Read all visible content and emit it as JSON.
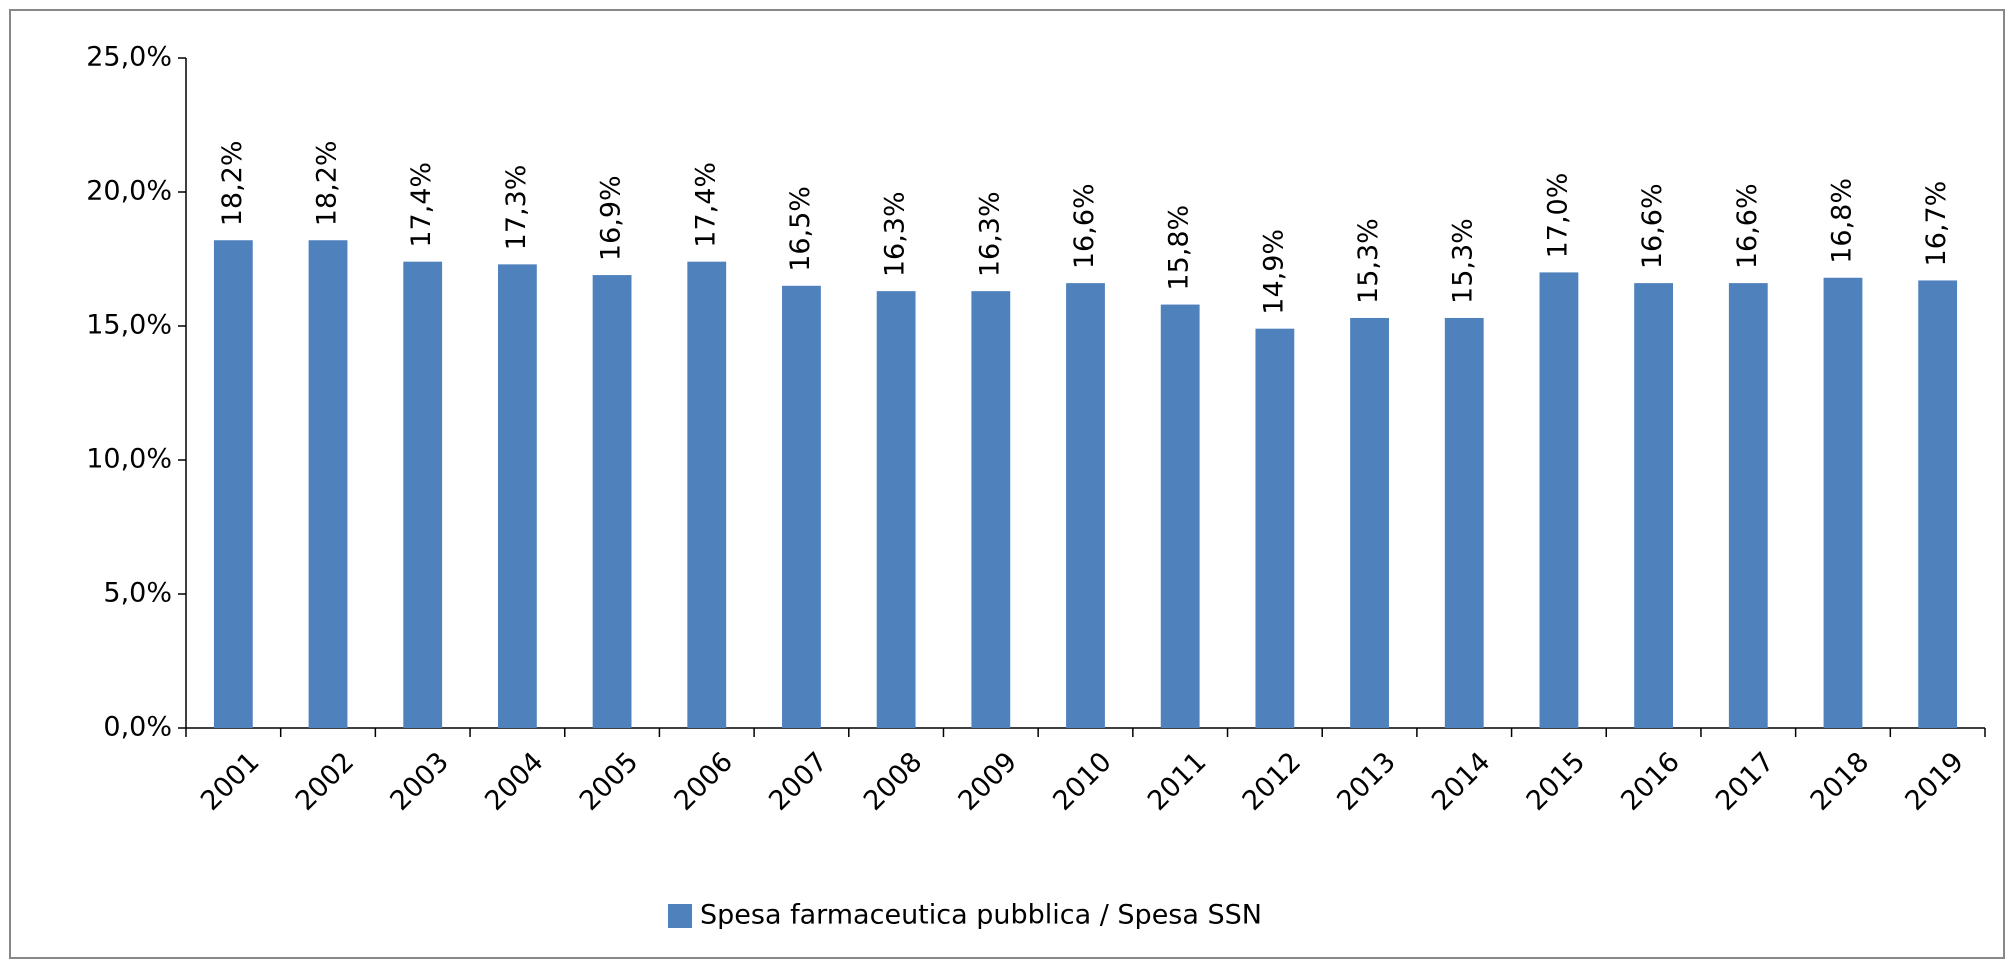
{
  "chart_data": {
    "type": "bar",
    "categories": [
      "2001",
      "2002",
      "2003",
      "2004",
      "2005",
      "2006",
      "2007",
      "2008",
      "2009",
      "2010",
      "2011",
      "2012",
      "2013",
      "2014",
      "2015",
      "2016",
      "2017",
      "2018",
      "2019"
    ],
    "series": [
      {
        "name": "Spesa farmaceutica pubblica / Spesa SSN",
        "color": "#4f81bd",
        "values": [
          18.2,
          18.2,
          17.4,
          17.3,
          16.9,
          17.4,
          16.5,
          16.3,
          16.3,
          16.6,
          15.8,
          14.9,
          15.3,
          15.3,
          17.0,
          16.6,
          16.6,
          16.8,
          16.7
        ],
        "value_labels": [
          "18,2%",
          "18,2%",
          "17,4%",
          "17,3%",
          "16,9%",
          "17,4%",
          "16,5%",
          "16,3%",
          "16,3%",
          "16,6%",
          "15,8%",
          "14,9%",
          "15,3%",
          "15,3%",
          "17,0%",
          "16,6%",
          "16,6%",
          "16,8%",
          "16,7%"
        ]
      }
    ],
    "ylim": [
      0,
      25
    ],
    "yticks": [
      {
        "value": 0,
        "label": "0,0%"
      },
      {
        "value": 5,
        "label": "5,0%"
      },
      {
        "value": 10,
        "label": "10,0%"
      },
      {
        "value": 15,
        "label": "15,0%"
      },
      {
        "value": 20,
        "label": "20,0%"
      },
      {
        "value": 25,
        "label": "25,0%"
      }
    ],
    "legend": "bottom"
  }
}
